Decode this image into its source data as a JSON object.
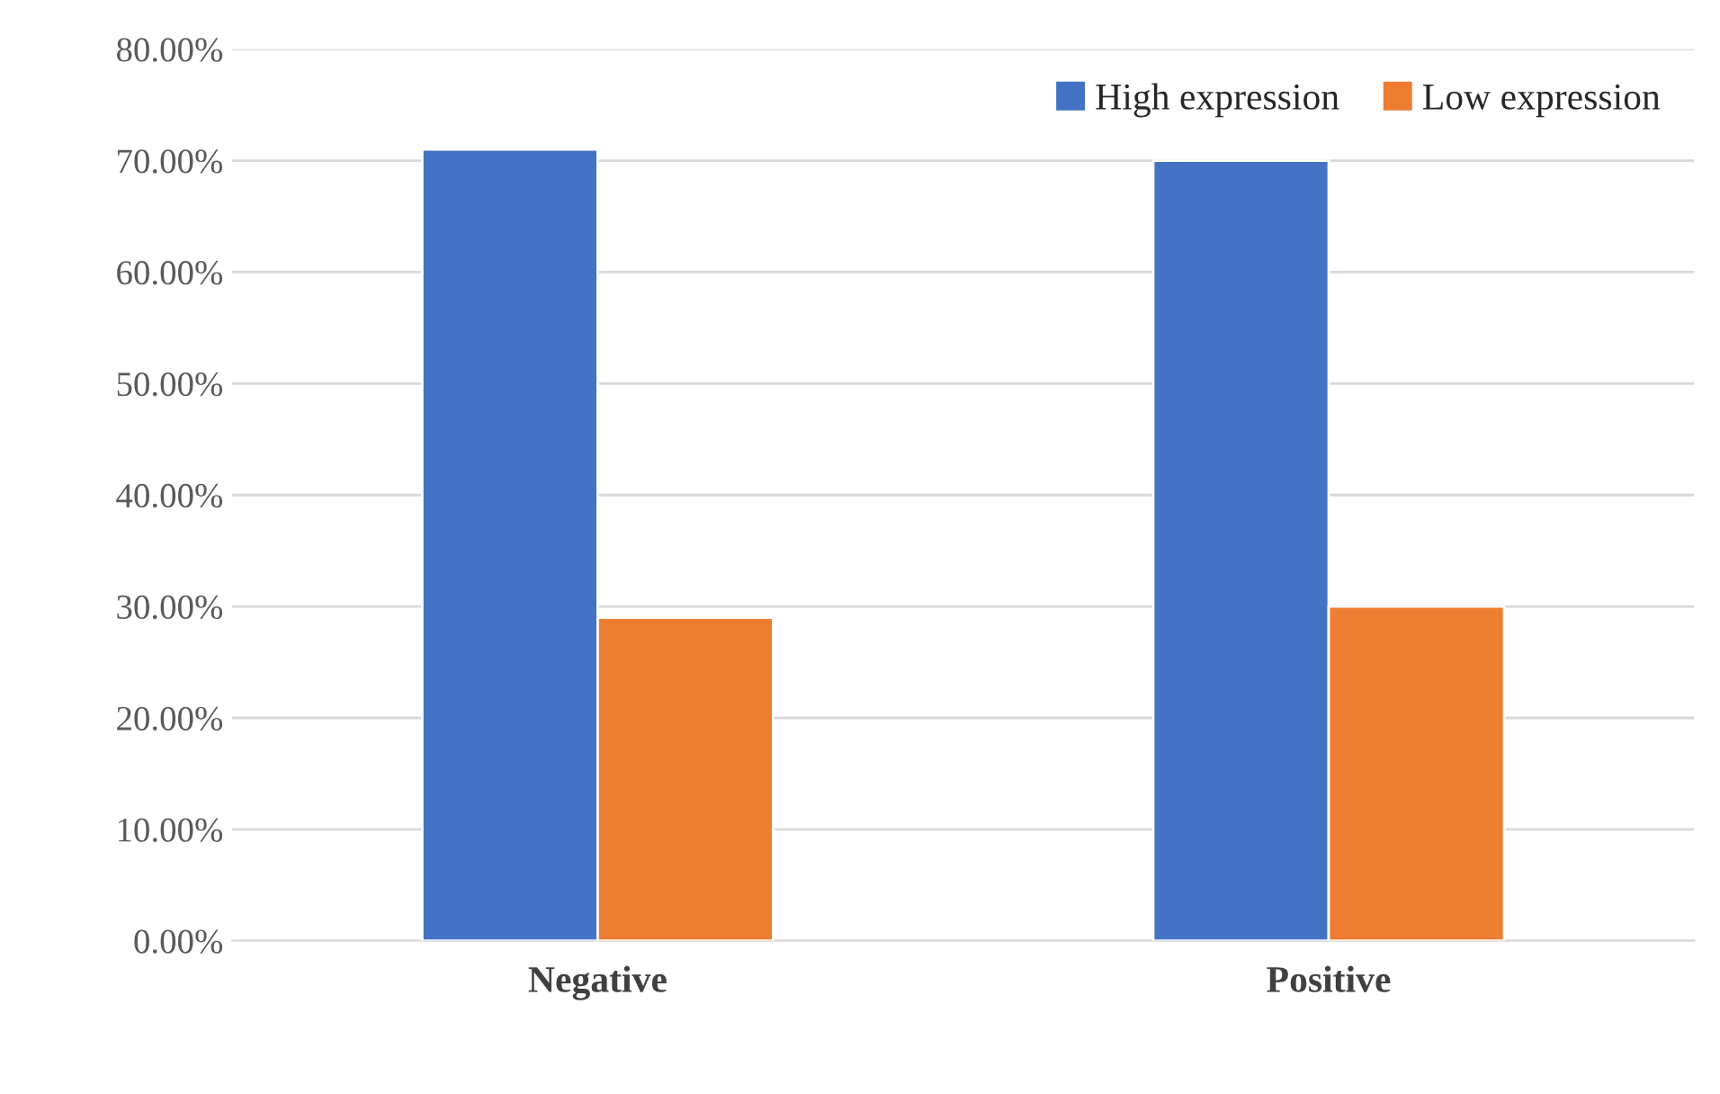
{
  "chart_data": {
    "type": "bar",
    "categories": [
      "Negative",
      "Positive"
    ],
    "series": [
      {
        "name": "High expression",
        "color": "#4472c4",
        "values": [
          71,
          70
        ]
      },
      {
        "name": "Low expression",
        "color": "#ed7d31",
        "values": [
          29,
          30
        ]
      }
    ],
    "ylim": [
      0,
      80
    ],
    "yticks": [
      {
        "value": 0,
        "label": "0.00%"
      },
      {
        "value": 10,
        "label": "10.00%"
      },
      {
        "value": 20,
        "label": "20.00%"
      },
      {
        "value": 30,
        "label": "30.00%"
      },
      {
        "value": 40,
        "label": "40.00%"
      },
      {
        "value": 50,
        "label": "50.00%"
      },
      {
        "value": 60,
        "label": "60.00%"
      },
      {
        "value": 70,
        "label": "70.00%"
      },
      {
        "value": 80,
        "label": "80.00%"
      }
    ],
    "grid": "y",
    "legend": "top right"
  }
}
